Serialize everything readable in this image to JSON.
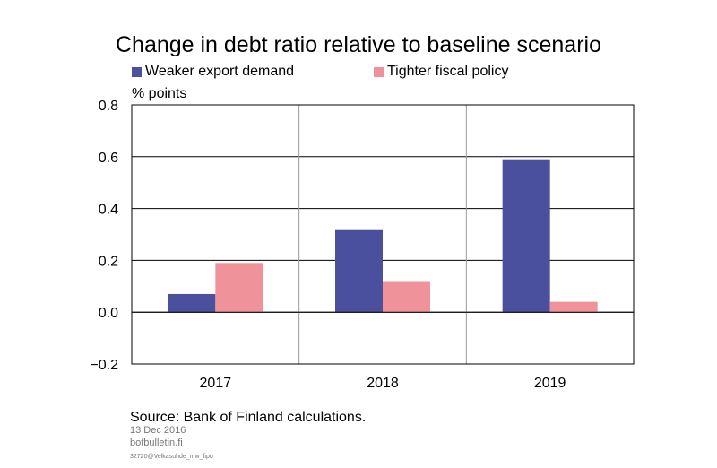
{
  "chart_data": {
    "type": "bar",
    "title": "Change in debt ratio relative to baseline scenario",
    "ylabel": "% points",
    "categories": [
      "2017",
      "2018",
      "2019"
    ],
    "series": [
      {
        "name": "Weaker export demand",
        "values": [
          0.07,
          0.32,
          0.59
        ],
        "color": "#4a4f9e"
      },
      {
        "name": "Tighter fiscal policy",
        "values": [
          0.19,
          0.12,
          0.04
        ],
        "color": "#f0929a"
      }
    ],
    "ylim": [
      -0.2,
      0.8
    ],
    "yticks": [
      "0.8",
      "0.6",
      "0.4",
      "0.2",
      "0.0",
      "−0.2"
    ],
    "grid": true,
    "legend_position": "top-left"
  },
  "footer": {
    "source": "Source: Bank of Finland calculations.",
    "date": "13 Dec 2016",
    "site": "bofbulletin.fi",
    "code": "32720@Velkasuhde_mw_fipo"
  }
}
